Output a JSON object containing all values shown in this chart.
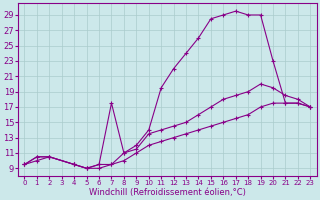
{
  "background_color": "#cce8ea",
  "grid_color": "#aacccc",
  "line_color": "#880088",
  "xlabel": "Windchill (Refroidissement éolien,°C)",
  "xlabel_fontsize": 6.0,
  "ytick_fontsize": 6.0,
  "xtick_fontsize": 5.0,
  "ylabel_ticks": [
    9,
    11,
    13,
    15,
    17,
    19,
    21,
    23,
    25,
    27,
    29
  ],
  "xlim": [
    -0.5,
    23.5
  ],
  "ylim": [
    8.0,
    30.5
  ],
  "line1_x": [
    0,
    1,
    2,
    4,
    5,
    6,
    7,
    8,
    9,
    10,
    11,
    12,
    13,
    14,
    15,
    16,
    17,
    18,
    19,
    20,
    21,
    22,
    23
  ],
  "line1_y": [
    9.5,
    10.5,
    10.5,
    9.5,
    9.0,
    9.5,
    17.5,
    11.0,
    12.0,
    14.0,
    19.5,
    22.0,
    24.0,
    26.0,
    28.5,
    29.0,
    29.5,
    29.0,
    29.0,
    23.0,
    17.5,
    17.5,
    17.0
  ],
  "line2_x": [
    0,
    1,
    2,
    4,
    5,
    6,
    7,
    8,
    9,
    10,
    11,
    12,
    13,
    14,
    15,
    16,
    17,
    18,
    19,
    20,
    21,
    22,
    23
  ],
  "line2_y": [
    9.5,
    10.5,
    10.5,
    9.5,
    9.0,
    9.5,
    9.5,
    11.0,
    11.5,
    13.5,
    14.0,
    14.5,
    15.0,
    16.0,
    17.0,
    18.0,
    18.5,
    19.0,
    20.0,
    19.5,
    18.5,
    18.0,
    17.0
  ],
  "line3_x": [
    0,
    1,
    2,
    4,
    5,
    6,
    7,
    8,
    9,
    10,
    11,
    12,
    13,
    14,
    15,
    16,
    17,
    18,
    19,
    20,
    21,
    22,
    23
  ],
  "line3_y": [
    9.5,
    10.0,
    10.5,
    9.5,
    9.0,
    9.0,
    9.5,
    10.0,
    11.0,
    12.0,
    12.5,
    13.0,
    13.5,
    14.0,
    14.5,
    15.0,
    15.5,
    16.0,
    17.0,
    17.5,
    17.5,
    17.5,
    17.0
  ]
}
